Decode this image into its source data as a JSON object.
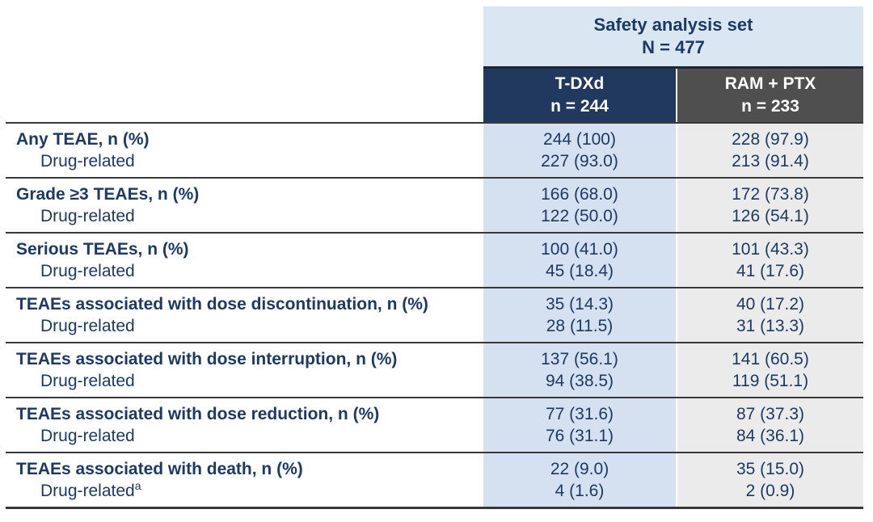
{
  "table": {
    "title": "Safety analysis set",
    "title_n": "N = 477",
    "columns": [
      {
        "name": "T-DXd",
        "n": "n = 244"
      },
      {
        "name": "RAM + PTX",
        "n": "n = 233"
      }
    ],
    "rows": [
      {
        "label": "Any TEAE, n (%)",
        "sublabel": "Drug-related",
        "sup": "",
        "tdxd": "244 (100)",
        "tdxd_sub": "227 (93.0)",
        "ram": "228 (97.9)",
        "ram_sub": "213 (91.4)"
      },
      {
        "label": "Grade ≥3 TEAEs, n (%)",
        "sublabel": "Drug-related",
        "sup": "",
        "tdxd": "166 (68.0)",
        "tdxd_sub": "122 (50.0)",
        "ram": "172 (73.8)",
        "ram_sub": "126 (54.1)"
      },
      {
        "label": "Serious TEAEs, n (%)",
        "sublabel": "Drug-related",
        "sup": "",
        "tdxd": "100 (41.0)",
        "tdxd_sub": "45 (18.4)",
        "ram": "101 (43.3)",
        "ram_sub": "41 (17.6)"
      },
      {
        "label": "TEAEs associated with dose discontinuation, n (%)",
        "sublabel": "Drug-related",
        "sup": "",
        "tdxd": "35 (14.3)",
        "tdxd_sub": "28 (11.5)",
        "ram": "40 (17.2)",
        "ram_sub": "31 (13.3)"
      },
      {
        "label": "TEAEs associated with dose interruption, n (%)",
        "sublabel": "Drug-related",
        "sup": "",
        "tdxd": "137 (56.1)",
        "tdxd_sub": "94 (38.5)",
        "ram": "141 (60.5)",
        "ram_sub": "119 (51.1)"
      },
      {
        "label": "TEAEs associated with dose reduction, n (%)",
        "sublabel": "Drug-related",
        "sup": "",
        "tdxd": "77 (31.6)",
        "tdxd_sub": "76 (31.1)",
        "ram": "87 (37.3)",
        "ram_sub": "84 (36.1)"
      },
      {
        "label": "TEAEs associated with death, n (%)",
        "sublabel": "Drug-related",
        "sup": "a",
        "tdxd": "22 (9.0)",
        "tdxd_sub": "4 (1.6)",
        "ram": "35 (15.0)",
        "ram_sub": "2 (0.9)"
      }
    ],
    "colors": {
      "banner_bg": "#dbe6f3",
      "tdxd_header_bg": "#21395f",
      "ram_header_bg": "#4f4f4f",
      "tdxd_column_bg": "#d5e0f0",
      "ram_column_bg": "#ebebeb",
      "text_navy": "#1c3a63",
      "separator_line": "#383838"
    }
  }
}
